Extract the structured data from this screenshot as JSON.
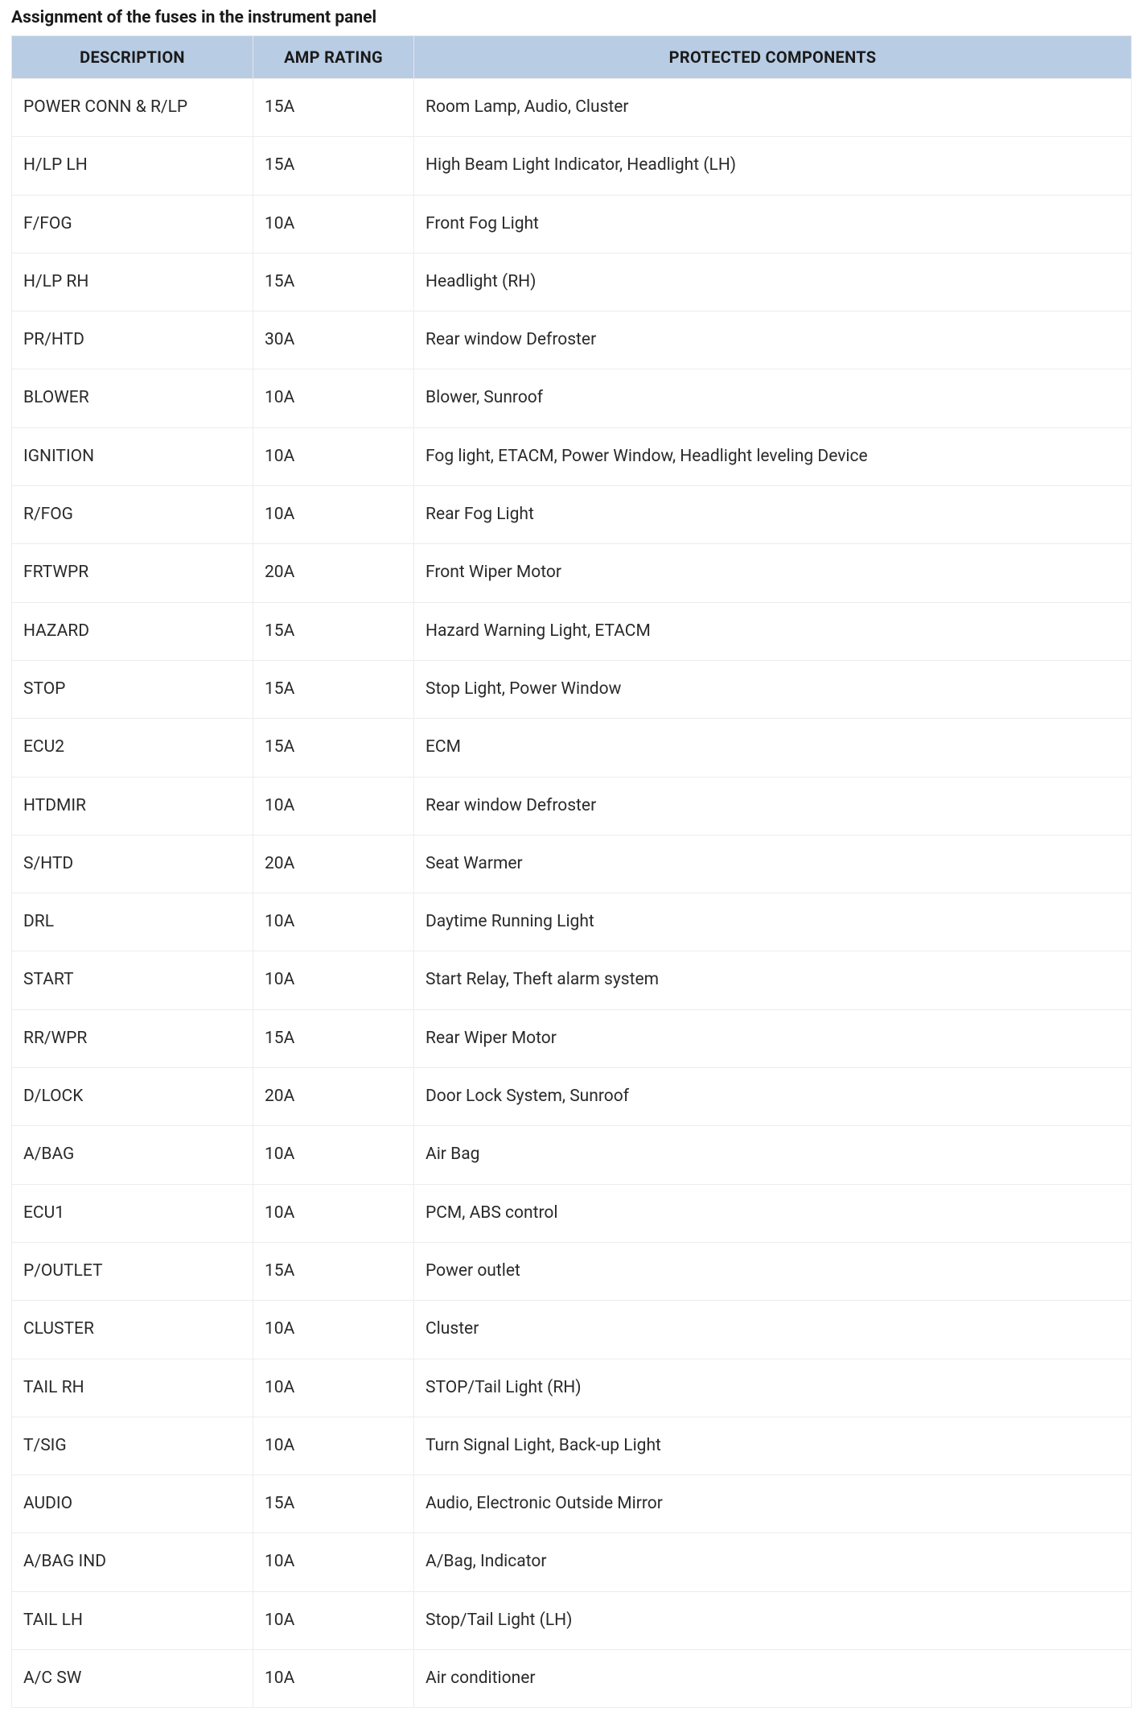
{
  "title": "Assignment of the fuses in the instrument panel",
  "table": {
    "header_bg": "#b8cce4",
    "border_color": "#ececec",
    "columns": [
      {
        "key": "description",
        "label": "DESCRIPTION"
      },
      {
        "key": "amp_rating",
        "label": "AMP RATING"
      },
      {
        "key": "protected_components",
        "label": "PROTECTED COMPONENTS"
      }
    ],
    "rows": [
      {
        "description": "POWER CONN & R/LP",
        "amp_rating": "15A",
        "protected_components": "Room Lamp, Audio, Cluster"
      },
      {
        "description": "H/LP LH",
        "amp_rating": "15A",
        "protected_components": "High Beam Light Indicator, Headlight (LH)"
      },
      {
        "description": "F/FOG",
        "amp_rating": "10A",
        "protected_components": "Front Fog Light"
      },
      {
        "description": "H/LP RH",
        "amp_rating": "15A",
        "protected_components": "Headlight (RH)"
      },
      {
        "description": "PR/HTD",
        "amp_rating": "30A",
        "protected_components": "Rear window Defroster"
      },
      {
        "description": "BLOWER",
        "amp_rating": "10A",
        "protected_components": "Blower, Sunroof"
      },
      {
        "description": "IGNITION",
        "amp_rating": "10A",
        "protected_components": "Fog light, ETACM, Power Window, Headlight leveling Device"
      },
      {
        "description": "R/FOG",
        "amp_rating": "10A",
        "protected_components": "Rear Fog Light"
      },
      {
        "description": "FRTWPR",
        "amp_rating": "20A",
        "protected_components": "Front Wiper Motor"
      },
      {
        "description": "HAZARD",
        "amp_rating": "15A",
        "protected_components": "Hazard Warning Light, ETACM"
      },
      {
        "description": "STOP",
        "amp_rating": "15A",
        "protected_components": "Stop Light, Power Window"
      },
      {
        "description": "ECU2",
        "amp_rating": "15A",
        "protected_components": "ECM"
      },
      {
        "description": "HTDMIR",
        "amp_rating": "10A",
        "protected_components": "Rear window Defroster"
      },
      {
        "description": "S/HTD",
        "amp_rating": "20A",
        "protected_components": "Seat Warmer"
      },
      {
        "description": "DRL",
        "amp_rating": "10A",
        "protected_components": "Daytime Running Light"
      },
      {
        "description": "START",
        "amp_rating": "10A",
        "protected_components": "Start Relay, Theft alarm system"
      },
      {
        "description": "RR/WPR",
        "amp_rating": "15A",
        "protected_components": "Rear Wiper Motor"
      },
      {
        "description": "D/LOCK",
        "amp_rating": "20A",
        "protected_components": "Door Lock System, Sunroof"
      },
      {
        "description": "A/BAG",
        "amp_rating": "10A",
        "protected_components": "Air Bag"
      },
      {
        "description": "ECU1",
        "amp_rating": "10A",
        "protected_components": "PCM, ABS control"
      },
      {
        "description": "P/OUTLET",
        "amp_rating": "15A",
        "protected_components": "Power outlet"
      },
      {
        "description": "CLUSTER",
        "amp_rating": "10A",
        "protected_components": "Cluster"
      },
      {
        "description": "TAIL RH",
        "amp_rating": "10A",
        "protected_components": "STOP/Tail Light (RH)"
      },
      {
        "description": "T/SIG",
        "amp_rating": "10A",
        "protected_components": "Turn Signal Light, Back-up Light"
      },
      {
        "description": "AUDIO",
        "amp_rating": "15A",
        "protected_components": "Audio, Electronic Outside Mirror"
      },
      {
        "description": "A/BAG IND",
        "amp_rating": "10A",
        "protected_components": "A/Bag, Indicator"
      },
      {
        "description": "TAIL LH",
        "amp_rating": "10A",
        "protected_components": "Stop/Tail Light (LH)"
      },
      {
        "description": "A/C SW",
        "amp_rating": "10A",
        "protected_components": "Air conditioner"
      }
    ]
  }
}
